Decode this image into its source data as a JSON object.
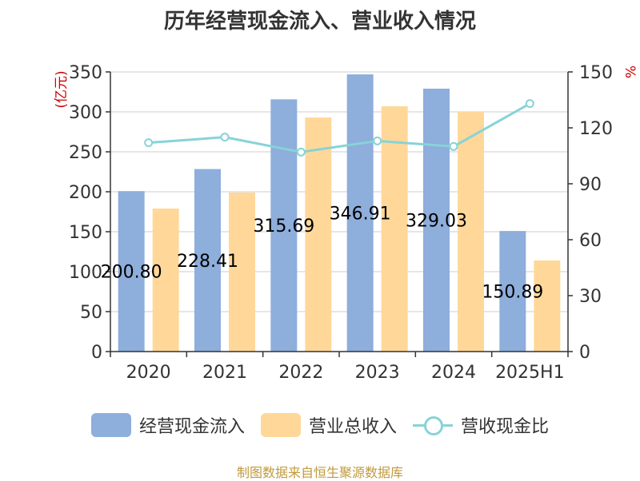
{
  "chart_data": {
    "type": "bar",
    "title": "历年经营现金流入、营业收入情况",
    "categories": [
      "2020",
      "2021",
      "2022",
      "2023",
      "2024",
      "2025H1"
    ],
    "series": [
      {
        "name": "经营现金流入",
        "type": "bar",
        "axis": "left",
        "color": "#8eaedb",
        "values": [
          200.8,
          228.41,
          315.69,
          346.91,
          329.03,
          150.89
        ]
      },
      {
        "name": "营业总收入",
        "type": "bar",
        "axis": "left",
        "color": "#ffd899",
        "values": [
          179,
          199,
          293,
          307,
          300,
          114
        ]
      },
      {
        "name": "营收现金比",
        "type": "line",
        "axis": "right",
        "color": "#87d3d8",
        "values": [
          112,
          115,
          107,
          113,
          110,
          133
        ]
      }
    ],
    "data_labels": [
      "200.80",
      "228.41",
      "315.69",
      "346.91",
      "329.03",
      "150.89"
    ],
    "ylabel_left": "(亿元)",
    "ylabel_right": "%",
    "ylim_left": [
      0,
      350
    ],
    "yticks_left": [
      "0",
      "50",
      "100",
      "150",
      "200",
      "250",
      "300",
      "350"
    ],
    "ylim_right": [
      0,
      150
    ],
    "yticks_right": [
      "0",
      "30",
      "60",
      "90",
      "120",
      "150"
    ],
    "grid": true,
    "legend": "bottom"
  },
  "source": "制图数据来自恒生聚源数据库"
}
